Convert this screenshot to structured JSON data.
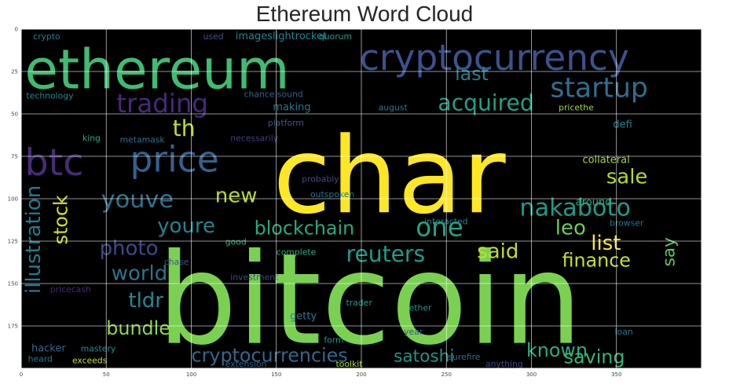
{
  "chart_data": {
    "type": "word-cloud",
    "title": "Ethereum Word Cloud",
    "x_ticks": [
      0,
      50,
      100,
      150,
      200,
      250,
      300,
      350
    ],
    "y_ticks": [
      0,
      25,
      50,
      75,
      100,
      125,
      150,
      175
    ],
    "xlim": [
      0,
      400
    ],
    "ylim": [
      200,
      0
    ],
    "grid": true,
    "background": "#000000",
    "words": [
      {
        "text": "bitcoin",
        "x": 80,
        "y": 185,
        "size": 74,
        "color": "#7ad151"
      },
      {
        "text": "char",
        "x": 148,
        "y": 108,
        "size": 62,
        "color": "#fde725"
      },
      {
        "text": "ethereum",
        "x": 2,
        "y": 35,
        "size": 32,
        "color": "#3fbc73"
      },
      {
        "text": "cryptocurrency",
        "x": 199,
        "y": 24,
        "size": 21,
        "color": "#3b528b"
      },
      {
        "text": "startup",
        "x": 311,
        "y": 40,
        "size": 16,
        "color": "#2e6f8e"
      },
      {
        "text": "price",
        "x": 64,
        "y": 84,
        "size": 21,
        "color": "#35608d"
      },
      {
        "text": "trading",
        "x": 56,
        "y": 49,
        "size": 15,
        "color": "#482878"
      },
      {
        "text": "btc",
        "x": 2,
        "y": 86,
        "size": 22,
        "color": "#472c7a"
      },
      {
        "text": "th",
        "x": 89,
        "y": 63,
        "size": 13,
        "color": "#bddf26"
      },
      {
        "text": "acquired",
        "x": 245,
        "y": 48,
        "size": 13,
        "color": "#1fa187"
      },
      {
        "text": "last",
        "x": 255,
        "y": 30,
        "size": 11,
        "color": "#277f8e"
      },
      {
        "text": "nakaboto",
        "x": 293,
        "y": 110,
        "size": 14,
        "color": "#1f9a8a"
      },
      {
        "text": "sale",
        "x": 344,
        "y": 91,
        "size": 12,
        "color": "#addc30"
      },
      {
        "text": "youve",
        "x": 47,
        "y": 105,
        "size": 14,
        "color": "#2c728e"
      },
      {
        "text": "new",
        "x": 114,
        "y": 102,
        "size": 12,
        "color": "#b5de2b"
      },
      {
        "text": "youre",
        "x": 80,
        "y": 120,
        "size": 12,
        "color": "#26828e"
      },
      {
        "text": "blockchain",
        "x": 137,
        "y": 121,
        "size": 11,
        "color": "#25ac82"
      },
      {
        "text": "one",
        "x": 232,
        "y": 122,
        "size": 15,
        "color": "#21a585"
      },
      {
        "text": "leo",
        "x": 314,
        "y": 121,
        "size": 12,
        "color": "#6ccd5a"
      },
      {
        "text": "list",
        "x": 335,
        "y": 130,
        "size": 12,
        "color": "#fde725"
      },
      {
        "text": "photo",
        "x": 46,
        "y": 133,
        "size": 12,
        "color": "#3e4989"
      },
      {
        "text": "stock",
        "x": 27,
        "y": 127,
        "size": 11,
        "color": "#d2e21b",
        "rotate": -90
      },
      {
        "text": "illustration",
        "x": 11,
        "y": 156,
        "size": 12,
        "color": "#2a788e",
        "rotate": -90
      },
      {
        "text": "reuters",
        "x": 191,
        "y": 137,
        "size": 13,
        "color": "#1e9c89"
      },
      {
        "text": "said",
        "x": 268,
        "y": 135,
        "size": 12,
        "color": "#c2df23"
      },
      {
        "text": "finance",
        "x": 318,
        "y": 140,
        "size": 11,
        "color": "#c8e020"
      },
      {
        "text": "world",
        "x": 53,
        "y": 148,
        "size": 12,
        "color": "#2d718e"
      },
      {
        "text": "tldr",
        "x": 63,
        "y": 164,
        "size": 12,
        "color": "#23898e"
      },
      {
        "text": "bundle",
        "x": 50,
        "y": 180,
        "size": 11,
        "color": "#8fd744"
      },
      {
        "text": "cryptocurrencies",
        "x": 100,
        "y": 196,
        "size": 11,
        "color": "#31688e"
      },
      {
        "text": "satoshi",
        "x": 219,
        "y": 196,
        "size": 10,
        "color": "#1f958b"
      },
      {
        "text": "known",
        "x": 297,
        "y": 193,
        "size": 11,
        "color": "#28ae80"
      },
      {
        "text": "saving",
        "x": 319,
        "y": 197,
        "size": 11,
        "color": "#35b779"
      },
      {
        "text": "say",
        "x": 384,
        "y": 140,
        "size": 10,
        "color": "#5ec962",
        "rotate": -90
      },
      {
        "text": "crypto",
        "x": 7,
        "y": 6,
        "size": 5,
        "color": "#287d8e"
      },
      {
        "text": "used",
        "x": 107,
        "y": 6,
        "size": 5,
        "color": "#3b528b"
      },
      {
        "text": "imageslightrocket",
        "x": 126,
        "y": 6,
        "size": 6,
        "color": "#25848e"
      },
      {
        "text": "quorum",
        "x": 175,
        "y": 6,
        "size": 5,
        "color": "#1e9b8a"
      },
      {
        "text": "technology",
        "x": 3,
        "y": 41,
        "size": 5,
        "color": "#25858e"
      },
      {
        "text": "chance sound",
        "x": 131,
        "y": 40,
        "size": 5,
        "color": "#33638d"
      },
      {
        "text": "making",
        "x": 148,
        "y": 48,
        "size": 6,
        "color": "#29798e"
      },
      {
        "text": "august",
        "x": 210,
        "y": 48,
        "size": 5,
        "color": "#2a788e"
      },
      {
        "text": "pricethe",
        "x": 316,
        "y": 48,
        "size": 5,
        "color": "#9bd93c"
      },
      {
        "text": "platform",
        "x": 145,
        "y": 57,
        "size": 5,
        "color": "#38588c"
      },
      {
        "text": "defi",
        "x": 348,
        "y": 58,
        "size": 6,
        "color": "#26828e"
      },
      {
        "text": "necessarily",
        "x": 123,
        "y": 66,
        "size": 5,
        "color": "#433e85"
      },
      {
        "text": "metamask",
        "x": 58,
        "y": 67,
        "size": 5,
        "color": "#2c738e"
      },
      {
        "text": "king",
        "x": 36,
        "y": 66,
        "size": 5,
        "color": "#22a884"
      },
      {
        "text": "collateral",
        "x": 330,
        "y": 79,
        "size": 6,
        "color": "#a0da39"
      },
      {
        "text": "probably",
        "x": 165,
        "y": 90,
        "size": 5,
        "color": "#3d4e8a"
      },
      {
        "text": "outspoken",
        "x": 170,
        "y": 99,
        "size": 5,
        "color": "#2c718e"
      },
      {
        "text": "around",
        "x": 326,
        "y": 104,
        "size": 6,
        "color": "#28ae80"
      },
      {
        "text": "browser",
        "x": 346,
        "y": 116,
        "size": 5,
        "color": "#2c738e"
      },
      {
        "text": "interacted",
        "x": 237,
        "y": 115,
        "size": 5,
        "color": "#277f8e"
      },
      {
        "text": "good",
        "x": 120,
        "y": 127,
        "size": 5,
        "color": "#2ab07f"
      },
      {
        "text": "complete",
        "x": 150,
        "y": 133,
        "size": 5,
        "color": "#28ae80"
      },
      {
        "text": "investment",
        "x": 123,
        "y": 148,
        "size": 5,
        "color": "#3e4989"
      },
      {
        "text": "pricecash",
        "x": 17,
        "y": 155,
        "size": 5,
        "color": "#482878"
      },
      {
        "text": "chase",
        "x": 84,
        "y": 139,
        "size": 5,
        "color": "#3b528b"
      },
      {
        "text": "getty",
        "x": 158,
        "y": 171,
        "size": 6,
        "color": "#29798e"
      },
      {
        "text": "trader",
        "x": 191,
        "y": 163,
        "size": 5,
        "color": "#1e9b8a"
      },
      {
        "text": "ether",
        "x": 228,
        "y": 166,
        "size": 5,
        "color": "#1f958b"
      },
      {
        "text": "form",
        "x": 178,
        "y": 185,
        "size": 5,
        "color": "#20928c"
      },
      {
        "text": "year",
        "x": 225,
        "y": 180,
        "size": 5,
        "color": "#39568c"
      },
      {
        "text": "hacker",
        "x": 6,
        "y": 190,
        "size": 6,
        "color": "#31688e"
      },
      {
        "text": "mastery",
        "x": 35,
        "y": 190,
        "size": 5,
        "color": "#21918c"
      },
      {
        "text": "heard",
        "x": 4,
        "y": 196,
        "size": 5,
        "color": "#2a788e"
      },
      {
        "text": "exceeds",
        "x": 30,
        "y": 197,
        "size": 5,
        "color": "#bddf26"
      },
      {
        "text": "extension",
        "x": 120,
        "y": 199,
        "size": 5,
        "color": "#34618d"
      },
      {
        "text": "toolkit",
        "x": 185,
        "y": 199,
        "size": 5,
        "color": "#a5db36"
      },
      {
        "text": "surefire",
        "x": 251,
        "y": 195,
        "size": 5,
        "color": "#31688e"
      },
      {
        "text": "loan",
        "x": 349,
        "y": 180,
        "size": 5,
        "color": "#2a788e"
      },
      {
        "text": "anything",
        "x": 273,
        "y": 199,
        "size": 5,
        "color": "#3e4989"
      }
    ]
  }
}
